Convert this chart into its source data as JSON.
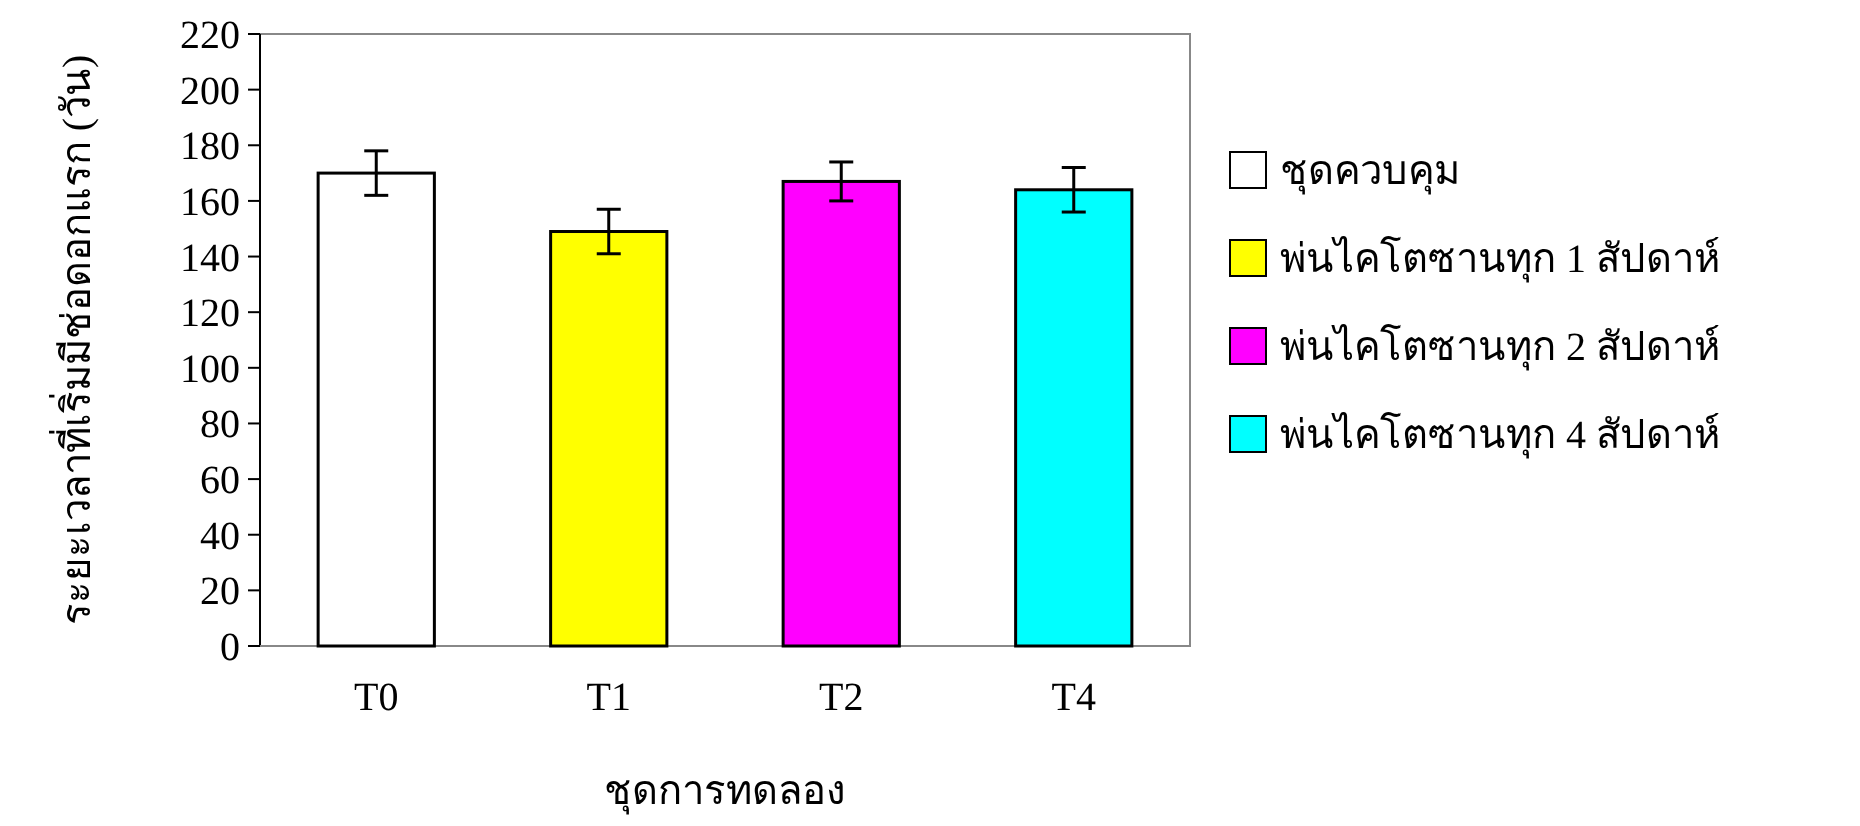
{
  "chart_data": {
    "type": "bar",
    "xlabel": "ชุดการทดลอง",
    "ylabel": "ระยะเวลาที่เริ่มมีช่อดอกแรก (วัน)",
    "categories": [
      "T0",
      "T1",
      "T2",
      "T4"
    ],
    "stacked": true,
    "series": [
      {
        "name": "ชุดควบคุม",
        "color": "#ffffff",
        "values": [
          170,
          null,
          null,
          null
        ],
        "errors": [
          8,
          null,
          null,
          null
        ]
      },
      {
        "name": "พ่นไคโตซานทุก 1 สัปดาห์",
        "color": "#ffff00",
        "values": [
          null,
          149,
          null,
          null
        ],
        "errors": [
          null,
          8,
          null,
          null
        ]
      },
      {
        "name": "พ่นไคโตซานทุก 2 สัปดาห์",
        "color": "#ff00ff",
        "values": [
          null,
          null,
          167,
          null
        ],
        "errors": [
          null,
          null,
          7,
          null
        ]
      },
      {
        "name": "พ่นไคโตซานทุก 4 สัปดาห์",
        "color": "#00ffff",
        "values": [
          null,
          null,
          null,
          164
        ],
        "errors": [
          null,
          null,
          null,
          8
        ]
      }
    ],
    "ylim": [
      0,
      220
    ],
    "yticks": [
      0,
      20,
      40,
      60,
      80,
      100,
      120,
      140,
      160,
      180,
      200,
      220
    ],
    "grid": false,
    "legend": "right"
  }
}
